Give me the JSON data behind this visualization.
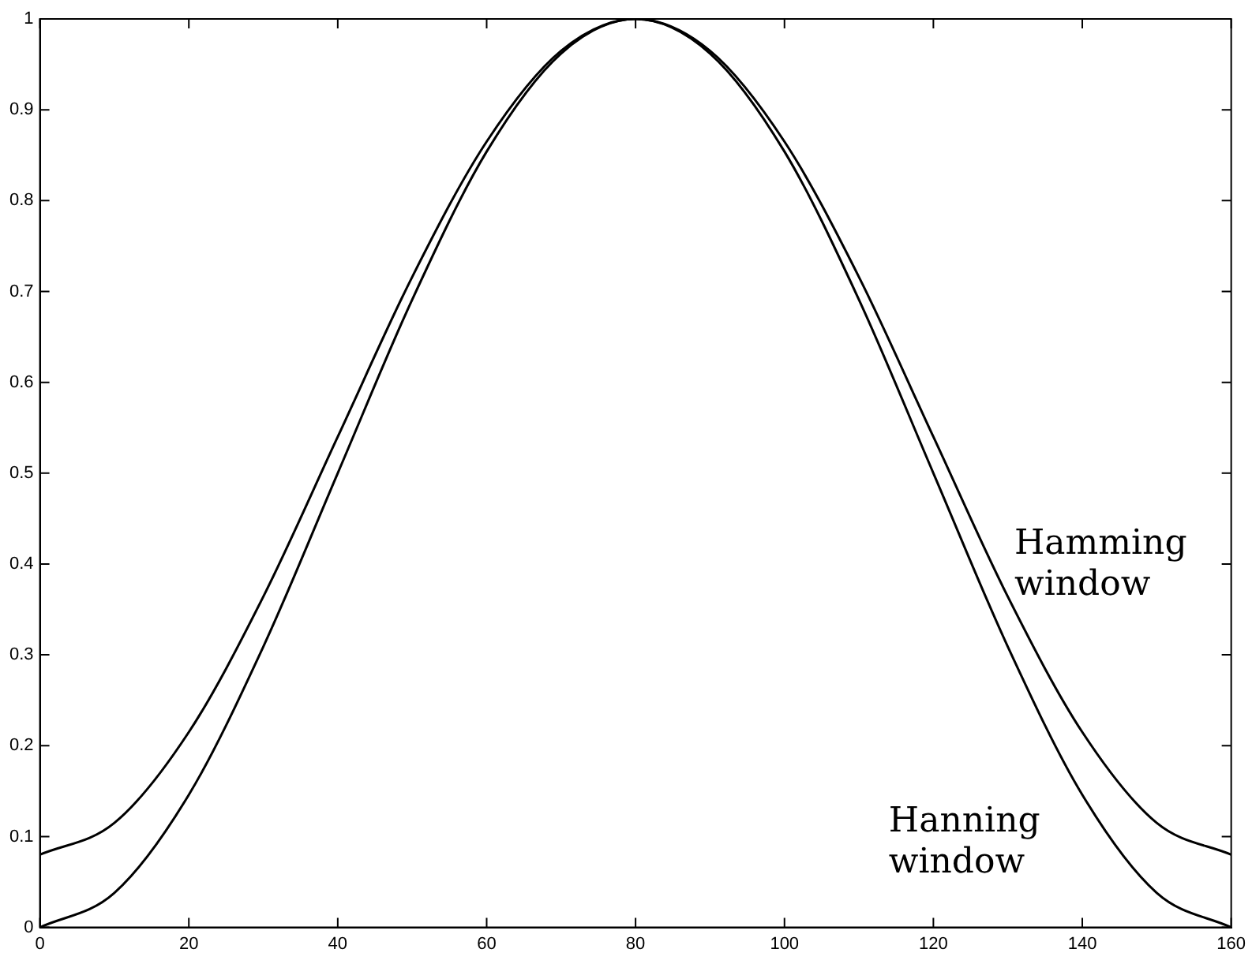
{
  "chart_data": {
    "type": "line",
    "x": [
      0,
      10,
      20,
      30,
      40,
      50,
      60,
      70,
      80,
      90,
      100,
      110,
      120,
      130,
      140,
      150,
      160
    ],
    "series": [
      {
        "color": "#000000",
        "values": [
          0.08,
          0.115,
          0.215,
          0.364,
          0.54,
          0.716,
          0.865,
          0.965,
          1,
          0.965,
          0.865,
          0.716,
          0.54,
          0.364,
          0.215,
          0.115,
          0.08
        ]
      },
      {
        "color": "#000000",
        "values": [
          0,
          0.038,
          0.146,
          0.309,
          0.5,
          0.691,
          0.854,
          0.962,
          1,
          0.962,
          0.854,
          0.691,
          0.5,
          0.309,
          0.146,
          0.038,
          0
        ]
      }
    ],
    "annotations": [
      "Hamming window",
      "Hanning window"
    ],
    "xlim": [
      0,
      160
    ],
    "xticks": [
      0,
      20,
      40,
      60,
      80,
      100,
      120,
      140,
      160
    ],
    "ylim": [
      0,
      1
    ],
    "yticks": [
      0,
      0.1,
      0.2,
      0.3,
      0.4,
      0.5,
      0.6,
      0.7,
      0.8,
      0.9,
      1
    ],
    "grid": false,
    "legend": false,
    "marker": "none",
    "line_style": "solid"
  }
}
